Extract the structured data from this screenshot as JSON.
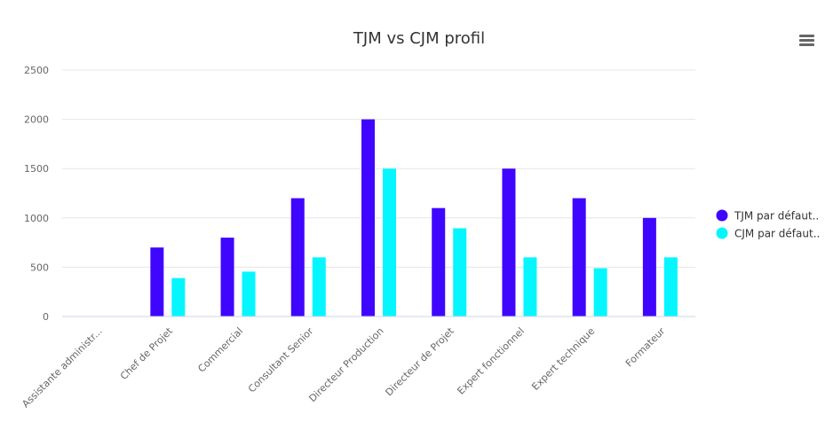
{
  "menu": {
    "icon": "hamburger-menu-icon"
  },
  "chart_data": {
    "type": "bar",
    "title": "TJM vs CJM profil",
    "xlabel": "",
    "ylabel": "",
    "categories": [
      "Assistante administr...",
      "Chef de Projet",
      "Commercial",
      "Consultant Senior",
      "Directeur Production",
      "Directeur de Projet",
      "Expert fonctionnel",
      "Expert technique",
      "Formateur"
    ],
    "series": [
      {
        "name": "TJM par défaut..",
        "color": "#3f06ff",
        "values": [
          0,
          700,
          800,
          1200,
          2000,
          1100,
          1500,
          1200,
          1000
        ]
      },
      {
        "name": "CJM par défaut..",
        "color": "#06f6ff",
        "values": [
          0,
          390,
          455,
          600,
          1500,
          895,
          600,
          490,
          600
        ]
      }
    ],
    "ylim": [
      0,
      2500
    ],
    "yticks": [
      "0",
      "500",
      "1000",
      "1500",
      "2000",
      "2500"
    ],
    "grid": true,
    "legend_position": "right"
  }
}
